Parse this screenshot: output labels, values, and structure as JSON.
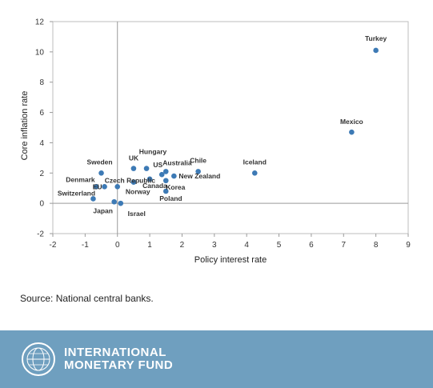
{
  "chart_data": {
    "type": "scatter",
    "title": "",
    "xlabel": "Policy interest rate",
    "ylabel": "Core inflation rate",
    "xlim": [
      -2,
      9
    ],
    "ylim": [
      -2,
      12
    ],
    "x_ticks": [
      "-2",
      "-1",
      "0",
      "1",
      "2",
      "3",
      "4",
      "5",
      "6",
      "7",
      "8",
      "9"
    ],
    "y_ticks": [
      "-2",
      "0",
      "2",
      "4",
      "6",
      "8",
      "10",
      "12"
    ],
    "grid": false,
    "zero_lines": true,
    "marker_color": "#3d7ab5",
    "points": [
      {
        "label": "Turkey",
        "x": 8.0,
        "y": 10.1
      },
      {
        "label": "Mexico",
        "x": 7.25,
        "y": 4.7
      },
      {
        "label": "Iceland",
        "x": 4.25,
        "y": 2.0
      },
      {
        "label": "Chile",
        "x": 2.5,
        "y": 2.1
      },
      {
        "label": "Hungary",
        "x": 0.9,
        "y": 2.3
      },
      {
        "label": "Australia",
        "x": 1.5,
        "y": 2.1
      },
      {
        "label": "New Zealand",
        "x": 1.75,
        "y": 1.8
      },
      {
        "label": "US",
        "x": 1.375,
        "y": 1.9
      },
      {
        "label": "UK",
        "x": 0.5,
        "y": 2.3
      },
      {
        "label": "Canada",
        "x": 1.0,
        "y": 1.6
      },
      {
        "label": "Korea",
        "x": 1.5,
        "y": 1.5
      },
      {
        "label": "Norway",
        "x": 0.5,
        "y": 1.4
      },
      {
        "label": "Poland",
        "x": 1.5,
        "y": 0.8
      },
      {
        "label": "Sweden",
        "x": -0.5,
        "y": 2.0
      },
      {
        "label": "Czech Republic",
        "x": 0.0,
        "y": 1.1
      },
      {
        "label": "EU",
        "x": -0.4,
        "y": 1.1
      },
      {
        "label": "Denmark",
        "x": -0.65,
        "y": 1.1
      },
      {
        "label": "Switzerland",
        "x": -0.75,
        "y": 0.3
      },
      {
        "label": "Japan",
        "x": -0.1,
        "y": 0.1
      },
      {
        "label": "Israel",
        "x": 0.1,
        "y": 0.0
      }
    ]
  },
  "source": "Source: National central banks.",
  "footer": {
    "brand_line1": "INTERNATIONAL",
    "brand_line2": "MONETARY FUND",
    "background_color": "#6f9fbf"
  }
}
